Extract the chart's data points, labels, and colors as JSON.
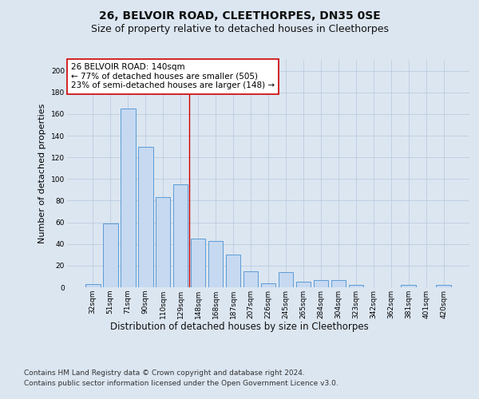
{
  "title1": "26, BELVOIR ROAD, CLEETHORPES, DN35 0SE",
  "title2": "Size of property relative to detached houses in Cleethorpes",
  "xlabel": "Distribution of detached houses by size in Cleethorpes",
  "ylabel": "Number of detached properties",
  "categories": [
    "32sqm",
    "51sqm",
    "71sqm",
    "90sqm",
    "110sqm",
    "129sqm",
    "148sqm",
    "168sqm",
    "187sqm",
    "207sqm",
    "226sqm",
    "245sqm",
    "265sqm",
    "284sqm",
    "304sqm",
    "323sqm",
    "342sqm",
    "362sqm",
    "381sqm",
    "401sqm",
    "420sqm"
  ],
  "values": [
    3,
    59,
    165,
    130,
    83,
    95,
    45,
    43,
    30,
    15,
    4,
    14,
    5,
    7,
    7,
    2,
    0,
    0,
    2,
    0,
    2
  ],
  "bar_color": "#c6d9f1",
  "bar_edge_color": "#5b9bd5",
  "bar_linewidth": 0.7,
  "grid_color": "#bbcce0",
  "background_color": "#dce6f1",
  "plot_bg_color": "#dce6f1",
  "annotation_text": "26 BELVOIR ROAD: 140sqm\n← 77% of detached houses are smaller (505)\n23% of semi-detached houses are larger (148) →",
  "annotation_box_color": "#ffffff",
  "annotation_box_edge_color": "#cc0000",
  "vline_x": 6.0,
  "vline_color": "#cc0000",
  "vline_linewidth": 1.0,
  "ylim": [
    0,
    210
  ],
  "yticks": [
    0,
    20,
    40,
    60,
    80,
    100,
    120,
    140,
    160,
    180,
    200
  ],
  "footer1": "Contains HM Land Registry data © Crown copyright and database right 2024.",
  "footer2": "Contains public sector information licensed under the Open Government Licence v3.0.",
  "title1_fontsize": 10,
  "title2_fontsize": 9,
  "ylabel_fontsize": 8,
  "xlabel_fontsize": 8.5,
  "tick_fontsize": 6.5,
  "annotation_fontsize": 7.5,
  "footer_fontsize": 6.5
}
